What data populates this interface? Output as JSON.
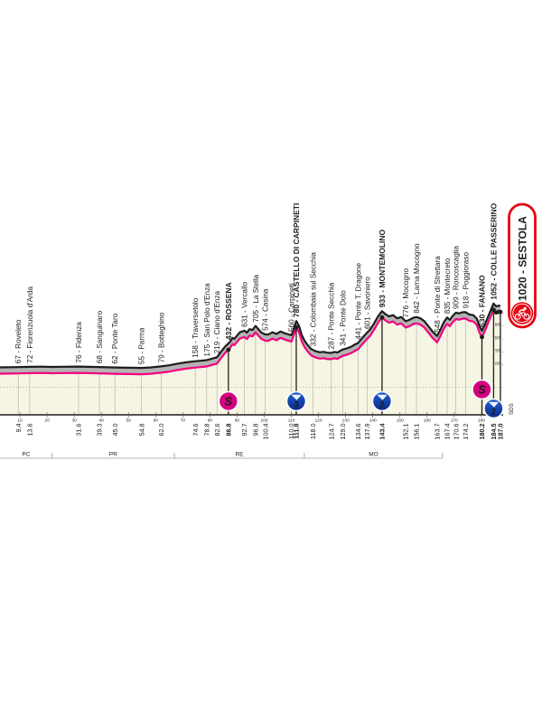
{
  "chart_data": {
    "type": "line",
    "description": "Cycling stage altimetry profile ending at Sestola",
    "finish_label": "1020 - SESTOLA",
    "sds_label": "SDS",
    "colors": {
      "pink_line": "#f4007e",
      "black_line": "#1d1d1b",
      "gray_band": "#b3b3b3",
      "cream_fill": "#f6f5e3",
      "sprint_pink": "#d4007f",
      "gpm_blue": "#2160d4",
      "gpm_blue_dark": "#0a2a86",
      "finish_red": "#e30613",
      "thin_line_gray": "#b5b5b5",
      "axis_gray": "#8a8a8a"
    },
    "km_ticks": [
      10,
      20,
      30,
      40,
      50,
      60,
      70,
      80,
      90,
      100,
      110,
      120,
      130,
      140,
      150,
      160,
      170,
      180
    ],
    "elev_ticks": [
      200,
      400,
      600,
      800,
      1000
    ],
    "regions": {
      "labels": [
        "PC",
        "PR",
        "RE",
        "MO"
      ],
      "boundaries_km": [
        21.9,
        66.9,
        114.8,
        165.7
      ]
    },
    "points": [
      {
        "km": 9.4,
        "elev": 67,
        "label": "67 - Roveleto",
        "bold": false,
        "marker": null
      },
      {
        "km": 13.6,
        "elev": 72,
        "label": "72 - Fiorenzuola d'Arda",
        "bold": false,
        "marker": null
      },
      {
        "km": 31.6,
        "elev": 76,
        "label": "76 - Fidenza",
        "bold": false,
        "marker": null
      },
      {
        "km": 39.3,
        "elev": 68,
        "label": "68 - Sanguinaro",
        "bold": false,
        "marker": null
      },
      {
        "km": 45.0,
        "elev": 62,
        "label": "62 - Ponte Taro",
        "bold": false,
        "marker": null
      },
      {
        "km": 54.8,
        "elev": 55,
        "label": "55 - Parma",
        "bold": false,
        "marker": null
      },
      {
        "km": 62.0,
        "elev": 79,
        "label": "79 - Botteghino",
        "bold": false,
        "marker": null
      },
      {
        "km": 74.6,
        "elev": 158,
        "label": "158 - Traversetolo",
        "bold": false,
        "marker": null
      },
      {
        "km": 78.8,
        "elev": 175,
        "label": "175 - San Polo d'Enza",
        "bold": false,
        "marker": null
      },
      {
        "km": 82.6,
        "elev": 219,
        "label": "219 - Ciano d'Enza",
        "bold": false,
        "marker": null
      },
      {
        "km": 86.8,
        "elev": 432,
        "label": "432 - ROSSENA",
        "bold": true,
        "marker": "sprint",
        "marker_text": "S"
      },
      {
        "km": 92.7,
        "elev": 631,
        "label": "631 - Vercallo",
        "bold": false,
        "marker": null
      },
      {
        "km": 96.8,
        "elev": 705,
        "label": "705 - La Stella",
        "bold": false,
        "marker": null
      },
      {
        "km": 100.4,
        "elev": 574,
        "label": "574 - Casina",
        "bold": false,
        "marker": null
      },
      {
        "km": 110.0,
        "elev": 560,
        "label": "560 - Carpineti",
        "bold": false,
        "marker": null
      },
      {
        "km": 111.8,
        "elev": 780,
        "label": "780 - CASTELLO DI CARPINETI",
        "bold": true,
        "marker": "gpm",
        "marker_text": "3"
      },
      {
        "km": 118.0,
        "elev": 332,
        "label": "332 - Colombaia sul Secchia",
        "bold": false,
        "marker": null
      },
      {
        "km": 124.7,
        "elev": 287,
        "label": "287 - Ponte Secchia",
        "bold": false,
        "marker": null
      },
      {
        "km": 129.0,
        "elev": 341,
        "label": "341 - Ponte Dolo",
        "bold": false,
        "marker": null
      },
      {
        "km": 134.6,
        "elev": 441,
        "label": "441 - Ponte T. Dragone",
        "bold": false,
        "marker": null
      },
      {
        "km": 137.9,
        "elev": 601,
        "label": "601 - Savoniero",
        "bold": false,
        "marker": null
      },
      {
        "km": 143.4,
        "elev": 933,
        "label": "933 - MONTEMOLINO",
        "bold": true,
        "marker": "gpm",
        "marker_text": "2"
      },
      {
        "km": 152.1,
        "elev": 776,
        "label": "776 - Mocogno",
        "bold": false,
        "marker": null
      },
      {
        "km": 156.1,
        "elev": 842,
        "label": "842 - Lama Mocogno",
        "bold": false,
        "marker": null
      },
      {
        "km": 163.7,
        "elev": 548,
        "label": "548 - Ponte di Strettara",
        "bold": false,
        "marker": null
      },
      {
        "km": 167.4,
        "elev": 835,
        "label": "835 - Montecreto",
        "bold": false,
        "marker": null
      },
      {
        "km": 170.6,
        "elev": 909,
        "label": "909 - Roncoscaglia",
        "bold": false,
        "marker": null
      },
      {
        "km": 174.2,
        "elev": 918,
        "label": "918 - Poggioraso",
        "bold": false,
        "marker": null
      },
      {
        "km": 180.2,
        "elev": 630,
        "label": "630 - FANANO",
        "bold": true,
        "marker": "sprint",
        "marker_text": "S"
      },
      {
        "km": 184.5,
        "elev": 1052,
        "label": "1052 - COLLE PASSERINO",
        "bold": true,
        "marker": "gpm",
        "marker_text": "2"
      },
      {
        "km": 187.0,
        "elev": 1020,
        "label": "1020 - SESTOLA",
        "bold": true,
        "marker": "finish"
      }
    ],
    "extra_dots": [
      [
        185.4,
        1008
      ],
      [
        186.2,
        1016
      ]
    ],
    "profile": [
      [
        0,
        62
      ],
      [
        5,
        64
      ],
      [
        9.4,
        67
      ],
      [
        13.6,
        72
      ],
      [
        18,
        74
      ],
      [
        22,
        70
      ],
      [
        26,
        73
      ],
      [
        31.6,
        76
      ],
      [
        35,
        72
      ],
      [
        39.3,
        68
      ],
      [
        42,
        65
      ],
      [
        45,
        62
      ],
      [
        50,
        58
      ],
      [
        54.8,
        55
      ],
      [
        58,
        62
      ],
      [
        62,
        79
      ],
      [
        65,
        95
      ],
      [
        68,
        120
      ],
      [
        71,
        140
      ],
      [
        74.6,
        158
      ],
      [
        76.5,
        165
      ],
      [
        78.8,
        175
      ],
      [
        80.5,
        195
      ],
      [
        82.6,
        219
      ],
      [
        84,
        300
      ],
      [
        85.5,
        380
      ],
      [
        86.8,
        432
      ],
      [
        87.6,
        470
      ],
      [
        88.3,
        520
      ],
      [
        89,
        505
      ],
      [
        90,
        555
      ],
      [
        91,
        605
      ],
      [
        92.7,
        631
      ],
      [
        93.6,
        600
      ],
      [
        94.6,
        655
      ],
      [
        95.7,
        640
      ],
      [
        96.8,
        705
      ],
      [
        97.8,
        655
      ],
      [
        99,
        600
      ],
      [
        100.4,
        574
      ],
      [
        101.5,
        570
      ],
      [
        103,
        605
      ],
      [
        104.5,
        580
      ],
      [
        106,
        618
      ],
      [
        107.5,
        592
      ],
      [
        109,
        572
      ],
      [
        110,
        560
      ],
      [
        110.9,
        660
      ],
      [
        111.8,
        780
      ],
      [
        112.8,
        705
      ],
      [
        113.8,
        565
      ],
      [
        114.8,
        480
      ],
      [
        115.8,
        420
      ],
      [
        116.6,
        378
      ],
      [
        117.3,
        345
      ],
      [
        118,
        332
      ],
      [
        119,
        312
      ],
      [
        120.5,
        296
      ],
      [
        122,
        303
      ],
      [
        123,
        291
      ],
      [
        124.7,
        287
      ],
      [
        125.8,
        302
      ],
      [
        127,
        294
      ],
      [
        128,
        318
      ],
      [
        129,
        341
      ],
      [
        130.5,
        358
      ],
      [
        132,
        382
      ],
      [
        133.5,
        420
      ],
      [
        134.6,
        441
      ],
      [
        136,
        515
      ],
      [
        137.9,
        601
      ],
      [
        139,
        648
      ],
      [
        140.5,
        745
      ],
      [
        142,
        858
      ],
      [
        143.4,
        933
      ],
      [
        144.6,
        888
      ],
      [
        146,
        852
      ],
      [
        147.5,
        872
      ],
      [
        149,
        822
      ],
      [
        150.5,
        842
      ],
      [
        152.1,
        776
      ],
      [
        153.5,
        798
      ],
      [
        155,
        832
      ],
      [
        156.1,
        842
      ],
      [
        157.5,
        822
      ],
      [
        159,
        778
      ],
      [
        160.5,
        698
      ],
      [
        162,
        618
      ],
      [
        163.7,
        548
      ],
      [
        165,
        655
      ],
      [
        166.2,
        762
      ],
      [
        167.4,
        835
      ],
      [
        168.4,
        798
      ],
      [
        169.5,
        862
      ],
      [
        170.6,
        909
      ],
      [
        171.8,
        898
      ],
      [
        173,
        916
      ],
      [
        174.2,
        918
      ],
      [
        175.5,
        882
      ],
      [
        177,
        872
      ],
      [
        178.3,
        818
      ],
      [
        179.3,
        698
      ],
      [
        180.2,
        630
      ],
      [
        181.3,
        725
      ],
      [
        182.5,
        852
      ],
      [
        183.5,
        952
      ],
      [
        184.5,
        1052
      ],
      [
        185.4,
        1008
      ],
      [
        186.2,
        1016
      ],
      [
        187,
        1020
      ]
    ]
  }
}
